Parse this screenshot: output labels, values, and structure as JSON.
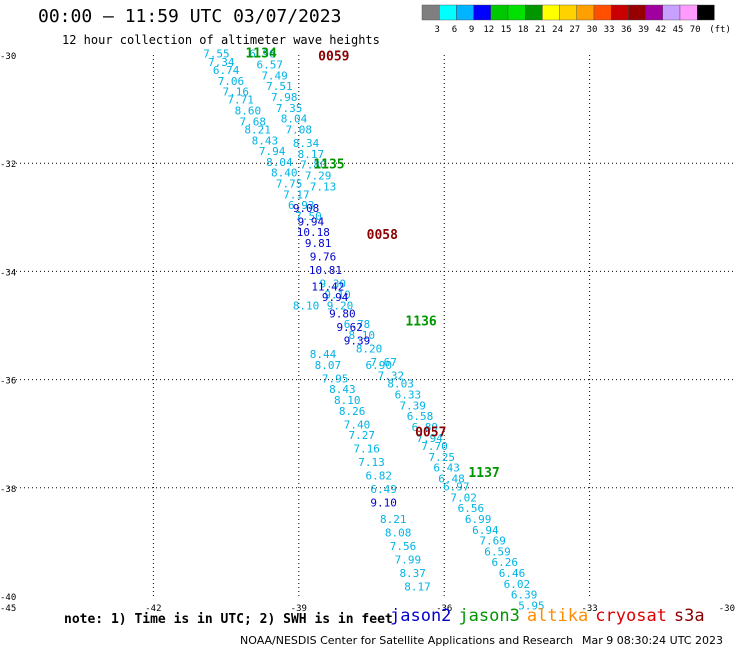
{
  "header": {
    "title": "00:00 – 11:59 UTC 03/07/2023",
    "subtitle": "12 hour collection of altimeter wave heights"
  },
  "colorbar": {
    "unit_label": "(ft)",
    "colors": [
      "#7f7f7f",
      "#00ffff",
      "#00b4ff",
      "#0000ff",
      "#00c800",
      "#00e100",
      "#009600",
      "#ffff00",
      "#ffd200",
      "#ffa000",
      "#ff5000",
      "#c80000",
      "#960000",
      "#a000a0",
      "#c8a0ff",
      "#ff9bff",
      "#000000"
    ],
    "labels": [
      "3",
      "6",
      "9",
      "12",
      "15",
      "18",
      "21",
      "24",
      "27",
      "30",
      "33",
      "36",
      "39",
      "42",
      "45",
      "70"
    ]
  },
  "footer": {
    "note": "note:  1) Time is in UTC; 2) SWH is in feet",
    "credit": "NOAA/NESDIS Center for Satellite Applications and Research",
    "generated": "Mar  9 08:30:24 UTC 2023"
  },
  "legend": [
    {
      "name": "jason2",
      "color": "#0000cd"
    },
    {
      "name": "jason3",
      "color": "#009600"
    },
    {
      "name": "altika",
      "color": "#ff8c00"
    },
    {
      "name": "cryosat",
      "color": "#dd0000"
    },
    {
      "name": "s3a",
      "color": "#8b0000"
    }
  ],
  "chart_data": {
    "type": "scatter",
    "title": "00:00 – 11:59 UTC 03/07/2023",
    "subtitle": "12 hour collection of altimeter wave heights",
    "xlim": [
      -45,
      -30
    ],
    "ylim": [
      -40,
      -30
    ],
    "xticks": [
      -45,
      -42,
      -39,
      -36,
      -33,
      -30
    ],
    "yticks": [
      -30,
      -32,
      -34,
      -36,
      -38,
      -40
    ],
    "grid": true,
    "pass_labels": [
      {
        "text": "1134",
        "x": -40.1,
        "y": -30.05,
        "color": "#009600"
      },
      {
        "text": "0059",
        "x": -38.6,
        "y": -30.1,
        "color": "#8b0000"
      },
      {
        "text": "1135",
        "x": -38.7,
        "y": -32.1,
        "color": "#009600"
      },
      {
        "text": "0058",
        "x": -37.6,
        "y": -33.4,
        "color": "#8b0000"
      },
      {
        "text": "1136",
        "x": -36.8,
        "y": -35.0,
        "color": "#009600"
      },
      {
        "text": "0057",
        "x": -36.6,
        "y": -37.05,
        "color": "#8b0000"
      },
      {
        "text": "1137",
        "x": -35.5,
        "y": -37.8,
        "color": "#009600"
      }
    ],
    "series": [
      {
        "color": "#00b4e6",
        "points": [
          {
            "x": -40.7,
            "y": -30.05,
            "v": "7.55"
          },
          {
            "x": -40.6,
            "y": -30.2,
            "v": "7.34"
          },
          {
            "x": -40.5,
            "y": -30.35,
            "v": "6.74"
          },
          {
            "x": -40.4,
            "y": -30.55,
            "v": "7.06"
          },
          {
            "x": -40.3,
            "y": -30.75,
            "v": "7.16"
          },
          {
            "x": -40.2,
            "y": -30.9,
            "v": "7.71"
          },
          {
            "x": -40.05,
            "y": -31.1,
            "v": "8.60"
          },
          {
            "x": -39.95,
            "y": -31.3,
            "v": "7.68"
          },
          {
            "x": -39.85,
            "y": -31.45,
            "v": "8.21"
          },
          {
            "x": -39.7,
            "y": -31.65,
            "v": "8.43"
          },
          {
            "x": -39.55,
            "y": -31.85,
            "v": "7.94"
          },
          {
            "x": -39.4,
            "y": -32.05,
            "v": "8.04"
          },
          {
            "x": -39.3,
            "y": -32.25,
            "v": "8.40"
          },
          {
            "x": -39.2,
            "y": -32.45,
            "v": "7.75"
          },
          {
            "x": -39.05,
            "y": -32.65,
            "v": "7.17"
          },
          {
            "x": -38.95,
            "y": -32.85,
            "v": "6.93"
          },
          {
            "x": -38.8,
            "y": -33.05,
            "v": "7.50"
          },
          {
            "x": -39.75,
            "y": -30.05,
            "v": "6.96"
          },
          {
            "x": -39.6,
            "y": -30.25,
            "v": "6.57"
          },
          {
            "x": -39.5,
            "y": -30.45,
            "v": "7.49"
          },
          {
            "x": -39.4,
            "y": -30.65,
            "v": "7.51"
          },
          {
            "x": -39.3,
            "y": -30.85,
            "v": "7.98"
          },
          {
            "x": -39.2,
            "y": -31.05,
            "v": "7.35"
          },
          {
            "x": -39.1,
            "y": -31.25,
            "v": "8.04"
          },
          {
            "x": -39.0,
            "y": -31.45,
            "v": "7.08"
          },
          {
            "x": -38.85,
            "y": -31.7,
            "v": "8.34"
          },
          {
            "x": -38.75,
            "y": -31.9,
            "v": "8.17"
          },
          {
            "x": -38.7,
            "y": -32.1,
            "v": "7.80"
          },
          {
            "x": -38.6,
            "y": -32.3,
            "v": "7.29"
          },
          {
            "x": -38.5,
            "y": -32.5,
            "v": "7.13"
          },
          {
            "x": -38.3,
            "y": -34.3,
            "v": "9.30"
          },
          {
            "x": -38.2,
            "y": -34.5,
            "v": "9.10"
          },
          {
            "x": -38.15,
            "y": -34.7,
            "v": "9.20"
          },
          {
            "x": -37.8,
            "y": -35.05,
            "v": "6.78"
          },
          {
            "x": -37.7,
            "y": -35.25,
            "v": "8.10"
          },
          {
            "x": -37.55,
            "y": -35.5,
            "v": "8.20"
          },
          {
            "x": -37.35,
            "y": -35.8,
            "v": "6.90"
          },
          {
            "x": -37.25,
            "y": -35.75,
            "v": "7.67"
          },
          {
            "x": -37.1,
            "y": -36.0,
            "v": "7.32"
          },
          {
            "x": -36.9,
            "y": -36.15,
            "v": "8.03"
          },
          {
            "x": -36.75,
            "y": -36.35,
            "v": "6.33"
          },
          {
            "x": -36.65,
            "y": -36.55,
            "v": "7.39"
          },
          {
            "x": -36.5,
            "y": -36.75,
            "v": "6.58"
          },
          {
            "x": -36.4,
            "y": -36.95,
            "v": "6.89"
          },
          {
            "x": -36.3,
            "y": -37.15,
            "v": "7.94"
          },
          {
            "x": -36.2,
            "y": -37.3,
            "v": "7.70"
          },
          {
            "x": -36.05,
            "y": -37.5,
            "v": "7.25"
          },
          {
            "x": -35.95,
            "y": -37.7,
            "v": "6.43"
          },
          {
            "x": -35.85,
            "y": -37.9,
            "v": "6.48"
          },
          {
            "x": -35.75,
            "y": -38.05,
            "v": "6.97"
          },
          {
            "x": -35.6,
            "y": -38.25,
            "v": "7.02"
          },
          {
            "x": -35.45,
            "y": -38.45,
            "v": "6.56"
          },
          {
            "x": -35.3,
            "y": -38.65,
            "v": "6.99"
          },
          {
            "x": -35.15,
            "y": -38.85,
            "v": "6.94"
          },
          {
            "x": -35.0,
            "y": -39.05,
            "v": "7.69"
          },
          {
            "x": -34.9,
            "y": -39.25,
            "v": "6.59"
          },
          {
            "x": -34.75,
            "y": -39.45,
            "v": "6.26"
          },
          {
            "x": -34.6,
            "y": -39.65,
            "v": "6.46"
          },
          {
            "x": -34.5,
            "y": -39.85,
            "v": "6.02"
          },
          {
            "x": -34.35,
            "y": -40.05,
            "v": "6.39"
          },
          {
            "x": -34.2,
            "y": -40.25,
            "v": "5.95"
          },
          {
            "x": -38.85,
            "y": -34.7,
            "v": "8.10"
          },
          {
            "x": -38.5,
            "y": -35.6,
            "v": "8.44"
          },
          {
            "x": -38.4,
            "y": -35.8,
            "v": "8.07"
          },
          {
            "x": -38.25,
            "y": -36.05,
            "v": "7.95"
          },
          {
            "x": -38.1,
            "y": -36.25,
            "v": "8.43"
          },
          {
            "x": -38.0,
            "y": -36.45,
            "v": "8.10"
          },
          {
            "x": -37.9,
            "y": -36.65,
            "v": "8.26"
          },
          {
            "x": -37.8,
            "y": -36.9,
            "v": "7.40"
          },
          {
            "x": -37.7,
            "y": -37.1,
            "v": "7.27"
          },
          {
            "x": -37.6,
            "y": -37.35,
            "v": "7.16"
          },
          {
            "x": -37.5,
            "y": -37.6,
            "v": "7.13"
          },
          {
            "x": -37.35,
            "y": -37.85,
            "v": "6.82"
          },
          {
            "x": -37.25,
            "y": -38.1,
            "v": "6.49"
          },
          {
            "x": -37.05,
            "y": -38.65,
            "v": "8.21"
          },
          {
            "x": -36.95,
            "y": -38.9,
            "v": "8.08"
          },
          {
            "x": -36.85,
            "y": -39.15,
            "v": "7.56"
          },
          {
            "x": -36.75,
            "y": -39.4,
            "v": "7.99"
          },
          {
            "x": -36.65,
            "y": -39.65,
            "v": "8.37"
          },
          {
            "x": -36.55,
            "y": -39.9,
            "v": "8.17"
          }
        ]
      },
      {
        "color": "#0000cd",
        "points": [
          {
            "x": -38.85,
            "y": -32.9,
            "v": "9.08"
          },
          {
            "x": -38.75,
            "y": -33.15,
            "v": "9.94"
          },
          {
            "x": -38.7,
            "y": -33.35,
            "v": "10.18"
          },
          {
            "x": -38.6,
            "y": -33.55,
            "v": "9.81"
          },
          {
            "x": -38.5,
            "y": -33.8,
            "v": "9.76"
          },
          {
            "x": -38.45,
            "y": -34.05,
            "v": "10.81"
          },
          {
            "x": -38.4,
            "y": -34.35,
            "v": "11.42"
          },
          {
            "x": -38.25,
            "y": -34.55,
            "v": "9.94"
          },
          {
            "x": -38.1,
            "y": -34.85,
            "v": "9.80"
          },
          {
            "x": -37.95,
            "y": -35.1,
            "v": "9.62"
          },
          {
            "x": -37.8,
            "y": -35.35,
            "v": "9.39"
          },
          {
            "x": -37.25,
            "y": -38.35,
            "v": "9.10"
          }
        ]
      }
    ]
  }
}
